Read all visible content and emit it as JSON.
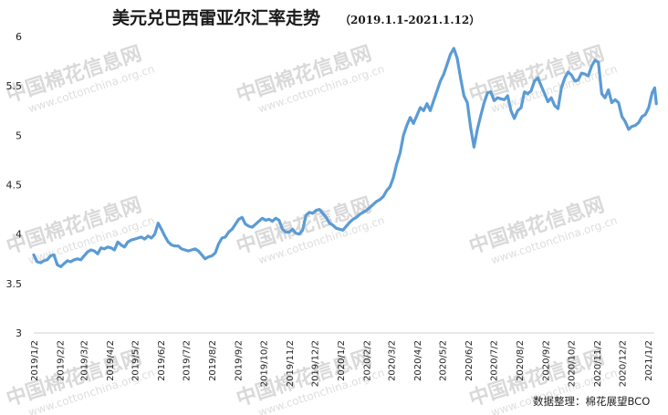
{
  "title": "美元兑巴西雷亚尔汇率走势",
  "subtitle": "（2019.1.1-2021.1.12）",
  "source": "数据整理：棉花展望BCO",
  "watermark": {
    "cn": "中国棉花信息网",
    "en": "www.cottonchina.org.cn"
  },
  "chart_data": {
    "type": "line",
    "x_tick_labels": [
      "2019/1/2",
      "2019/2/2",
      "2019/3/2",
      "2019/4/2",
      "2019/5/2",
      "2019/6/2",
      "2019/7/2",
      "2019/8/2",
      "2019/9/2",
      "2019/10/2",
      "2019/11/2",
      "2019/12/2",
      "2020/1/2",
      "2020/2/2",
      "2020/3/2",
      "2020/4/2",
      "2020/5/2",
      "2020/6/2",
      "2020/7/2",
      "2020/8/2",
      "2020/9/2",
      "2020/10/2",
      "2020/11/2",
      "2020/12/2",
      "2021/1/2"
    ],
    "ylim": [
      3,
      6
    ],
    "y_ticks": [
      3,
      3.5,
      4,
      4.5,
      5,
      5.5,
      6
    ],
    "y_tick_labels": [
      "3",
      "3.5",
      "4",
      "4.5",
      "5",
      "5.5",
      "6"
    ],
    "grid": false,
    "line_color": "#5b9bd5",
    "series": [
      {
        "name": "",
        "points": [
          [
            "2019-01-02",
            3.79
          ],
          [
            "2019-01-06",
            3.72
          ],
          [
            "2019-01-10",
            3.71
          ],
          [
            "2019-01-14",
            3.73
          ],
          [
            "2019-01-18",
            3.74
          ],
          [
            "2019-01-22",
            3.78
          ],
          [
            "2019-01-26",
            3.79
          ],
          [
            "2019-01-30",
            3.69
          ],
          [
            "2019-02-03",
            3.67
          ],
          [
            "2019-02-07",
            3.7
          ],
          [
            "2019-02-11",
            3.73
          ],
          [
            "2019-02-15",
            3.72
          ],
          [
            "2019-02-19",
            3.74
          ],
          [
            "2019-02-23",
            3.75
          ],
          [
            "2019-02-27",
            3.74
          ],
          [
            "2019-03-03",
            3.78
          ],
          [
            "2019-03-07",
            3.82
          ],
          [
            "2019-03-11",
            3.84
          ],
          [
            "2019-03-15",
            3.83
          ],
          [
            "2019-03-19",
            3.8
          ],
          [
            "2019-03-23",
            3.86
          ],
          [
            "2019-03-27",
            3.85
          ],
          [
            "2019-03-31",
            3.87
          ],
          [
            "2019-04-04",
            3.86
          ],
          [
            "2019-04-08",
            3.84
          ],
          [
            "2019-04-12",
            3.92
          ],
          [
            "2019-04-16",
            3.89
          ],
          [
            "2019-04-20",
            3.87
          ],
          [
            "2019-04-24",
            3.92
          ],
          [
            "2019-04-28",
            3.94
          ],
          [
            "2019-05-02",
            3.95
          ],
          [
            "2019-05-06",
            3.96
          ],
          [
            "2019-05-10",
            3.97
          ],
          [
            "2019-05-14",
            3.95
          ],
          [
            "2019-05-18",
            3.98
          ],
          [
            "2019-05-22",
            3.96
          ],
          [
            "2019-05-26",
            4.0
          ],
          [
            "2019-05-30",
            4.11
          ],
          [
            "2019-06-03",
            4.05
          ],
          [
            "2019-06-07",
            3.98
          ],
          [
            "2019-06-11",
            3.92
          ],
          [
            "2019-06-15",
            3.89
          ],
          [
            "2019-06-19",
            3.88
          ],
          [
            "2019-06-23",
            3.88
          ],
          [
            "2019-06-27",
            3.85
          ],
          [
            "2019-07-01",
            3.84
          ],
          [
            "2019-07-05",
            3.83
          ],
          [
            "2019-07-09",
            3.84
          ],
          [
            "2019-07-13",
            3.85
          ],
          [
            "2019-07-17",
            3.83
          ],
          [
            "2019-07-21",
            3.79
          ],
          [
            "2019-07-25",
            3.75
          ],
          [
            "2019-07-29",
            3.77
          ],
          [
            "2019-08-02",
            3.78
          ],
          [
            "2019-08-06",
            3.81
          ],
          [
            "2019-08-10",
            3.9
          ],
          [
            "2019-08-14",
            3.96
          ],
          [
            "2019-08-18",
            3.97
          ],
          [
            "2019-08-22",
            4.02
          ],
          [
            "2019-08-26",
            4.05
          ],
          [
            "2019-08-30",
            4.1
          ],
          [
            "2019-09-03",
            4.15
          ],
          [
            "2019-09-07",
            4.17
          ],
          [
            "2019-09-11",
            4.1
          ],
          [
            "2019-09-15",
            4.08
          ],
          [
            "2019-09-19",
            4.07
          ],
          [
            "2019-09-23",
            4.1
          ],
          [
            "2019-09-27",
            4.13
          ],
          [
            "2019-10-01",
            4.16
          ],
          [
            "2019-10-05",
            4.14
          ],
          [
            "2019-10-09",
            4.15
          ],
          [
            "2019-10-13",
            4.13
          ],
          [
            "2019-10-17",
            4.16
          ],
          [
            "2019-10-21",
            4.14
          ],
          [
            "2019-10-25",
            4.05
          ],
          [
            "2019-10-29",
            4.02
          ],
          [
            "2019-11-02",
            4.02
          ],
          [
            "2019-11-06",
            4.05
          ],
          [
            "2019-11-10",
            4.01
          ],
          [
            "2019-11-14",
            4.0
          ],
          [
            "2019-11-18",
            4.04
          ],
          [
            "2019-11-22",
            4.19
          ],
          [
            "2019-11-26",
            4.22
          ],
          [
            "2019-11-30",
            4.21
          ],
          [
            "2019-12-04",
            4.24
          ],
          [
            "2019-12-08",
            4.25
          ],
          [
            "2019-12-12",
            4.21
          ],
          [
            "2019-12-16",
            4.17
          ],
          [
            "2019-12-20",
            4.11
          ],
          [
            "2019-12-24",
            4.09
          ],
          [
            "2019-12-28",
            4.06
          ],
          [
            "2020-01-01",
            4.05
          ],
          [
            "2020-01-05",
            4.04
          ],
          [
            "2020-01-09",
            4.08
          ],
          [
            "2020-01-13",
            4.12
          ],
          [
            "2020-01-17",
            4.15
          ],
          [
            "2020-01-21",
            4.17
          ],
          [
            "2020-01-25",
            4.2
          ],
          [
            "2020-01-29",
            4.22
          ],
          [
            "2020-02-02",
            4.24
          ],
          [
            "2020-02-06",
            4.27
          ],
          [
            "2020-02-10",
            4.3
          ],
          [
            "2020-02-14",
            4.33
          ],
          [
            "2020-02-18",
            4.35
          ],
          [
            "2020-02-22",
            4.38
          ],
          [
            "2020-02-26",
            4.44
          ],
          [
            "2020-03-01",
            4.48
          ],
          [
            "2020-03-05",
            4.57
          ],
          [
            "2020-03-09",
            4.71
          ],
          [
            "2020-03-13",
            4.82
          ],
          [
            "2020-03-17",
            5.0
          ],
          [
            "2020-03-21",
            5.1
          ],
          [
            "2020-03-25",
            5.18
          ],
          [
            "2020-03-29",
            5.12
          ],
          [
            "2020-04-02",
            5.2
          ],
          [
            "2020-04-06",
            5.28
          ],
          [
            "2020-04-10",
            5.25
          ],
          [
            "2020-04-14",
            5.32
          ],
          [
            "2020-04-18",
            5.25
          ],
          [
            "2020-04-22",
            5.35
          ],
          [
            "2020-04-26",
            5.45
          ],
          [
            "2020-04-30",
            5.55
          ],
          [
            "2020-05-04",
            5.62
          ],
          [
            "2020-05-08",
            5.72
          ],
          [
            "2020-05-12",
            5.82
          ],
          [
            "2020-05-16",
            5.88
          ],
          [
            "2020-05-20",
            5.78
          ],
          [
            "2020-05-24",
            5.58
          ],
          [
            "2020-05-28",
            5.4
          ],
          [
            "2020-06-01",
            5.33
          ],
          [
            "2020-06-05",
            5.08
          ],
          [
            "2020-06-09",
            4.88
          ],
          [
            "2020-06-13",
            5.06
          ],
          [
            "2020-06-17",
            5.2
          ],
          [
            "2020-06-21",
            5.33
          ],
          [
            "2020-06-25",
            5.43
          ],
          [
            "2020-06-29",
            5.44
          ],
          [
            "2020-07-03",
            5.35
          ],
          [
            "2020-07-07",
            5.38
          ],
          [
            "2020-07-11",
            5.37
          ],
          [
            "2020-07-15",
            5.36
          ],
          [
            "2020-07-19",
            5.4
          ],
          [
            "2020-07-23",
            5.25
          ],
          [
            "2020-07-27",
            5.17
          ],
          [
            "2020-07-31",
            5.25
          ],
          [
            "2020-08-04",
            5.28
          ],
          [
            "2020-08-08",
            5.44
          ],
          [
            "2020-08-12",
            5.42
          ],
          [
            "2020-08-16",
            5.45
          ],
          [
            "2020-08-20",
            5.55
          ],
          [
            "2020-08-24",
            5.58
          ],
          [
            "2020-08-28",
            5.5
          ],
          [
            "2020-09-01",
            5.42
          ],
          [
            "2020-09-05",
            5.34
          ],
          [
            "2020-09-09",
            5.38
          ],
          [
            "2020-09-13",
            5.3
          ],
          [
            "2020-09-17",
            5.27
          ],
          [
            "2020-09-21",
            5.48
          ],
          [
            "2020-09-25",
            5.58
          ],
          [
            "2020-09-29",
            5.64
          ],
          [
            "2020-10-03",
            5.61
          ],
          [
            "2020-10-07",
            5.55
          ],
          [
            "2020-10-11",
            5.56
          ],
          [
            "2020-10-15",
            5.63
          ],
          [
            "2020-10-19",
            5.62
          ],
          [
            "2020-10-23",
            5.6
          ],
          [
            "2020-10-27",
            5.7
          ],
          [
            "2020-10-31",
            5.76
          ],
          [
            "2020-11-04",
            5.74
          ],
          [
            "2020-11-08",
            5.42
          ],
          [
            "2020-11-12",
            5.38
          ],
          [
            "2020-11-16",
            5.46
          ],
          [
            "2020-11-20",
            5.33
          ],
          [
            "2020-11-24",
            5.36
          ],
          [
            "2020-11-28",
            5.33
          ],
          [
            "2020-12-02",
            5.19
          ],
          [
            "2020-12-06",
            5.14
          ],
          [
            "2020-12-10",
            5.06
          ],
          [
            "2020-12-14",
            5.09
          ],
          [
            "2020-12-18",
            5.1
          ],
          [
            "2020-12-22",
            5.13
          ],
          [
            "2020-12-26",
            5.19
          ],
          [
            "2020-12-30",
            5.21
          ],
          [
            "2021-01-03",
            5.28
          ],
          [
            "2021-01-07",
            5.43
          ],
          [
            "2021-01-10",
            5.48
          ],
          [
            "2021-01-12",
            5.32
          ]
        ]
      }
    ]
  }
}
